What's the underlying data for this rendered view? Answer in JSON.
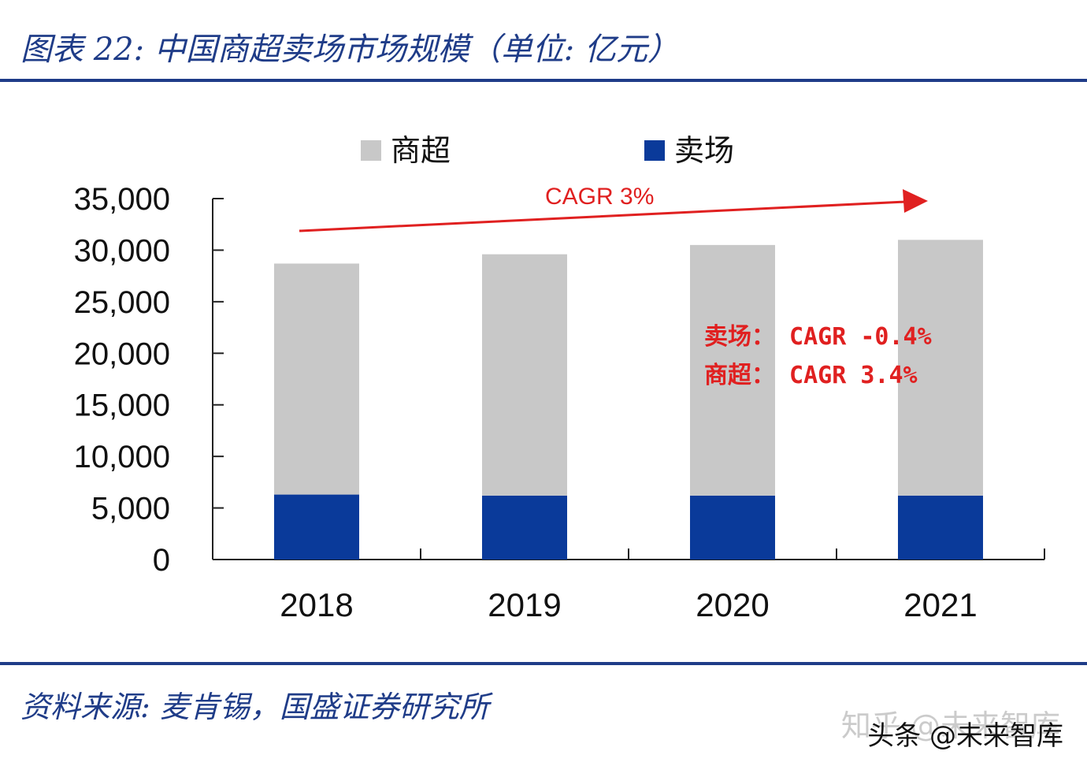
{
  "header": {
    "title": "图表 22:  中国商超卖场市场规模（单位:  亿元）"
  },
  "footer": {
    "source": "资料来源:  麦肯锡，国盛证券研究所",
    "watermark_zhihu": "知乎 @未来智库",
    "watermark_toutiao": "头条 @未来智库"
  },
  "colors": {
    "accent": "#1f3c88",
    "series_supermarket": "#c8c8c8",
    "series_hypermarket": "#0a3a9a",
    "annotation": "#e02020"
  },
  "chart_data": {
    "type": "bar",
    "stacked": true,
    "title": "中国商超卖场市场规模（单位:  亿元）",
    "categories": [
      "2018",
      "2019",
      "2020",
      "2021"
    ],
    "series": [
      {
        "name": "卖场",
        "values": [
          6300,
          6200,
          6200,
          6200
        ]
      },
      {
        "name": "商超",
        "values": [
          22400,
          23400,
          24300,
          24800
        ]
      }
    ],
    "legend": [
      "商超",
      "卖场"
    ],
    "legend_position": "top",
    "ylim": [
      0,
      35000
    ],
    "yticks": [
      0,
      5000,
      10000,
      15000,
      20000,
      25000,
      30000,
      35000
    ],
    "ytick_labels": [
      "0",
      "5,000",
      "10,000",
      "15,000",
      "20,000",
      "25,000",
      "30,000",
      "35,000"
    ],
    "xlabel": "",
    "ylabel": "",
    "grid": false,
    "annotations": {
      "trend": "CAGR 3%",
      "hypermarket": "卖场： CAGR -0.4%",
      "supermarket": "商超： CAGR 3.4%"
    }
  }
}
